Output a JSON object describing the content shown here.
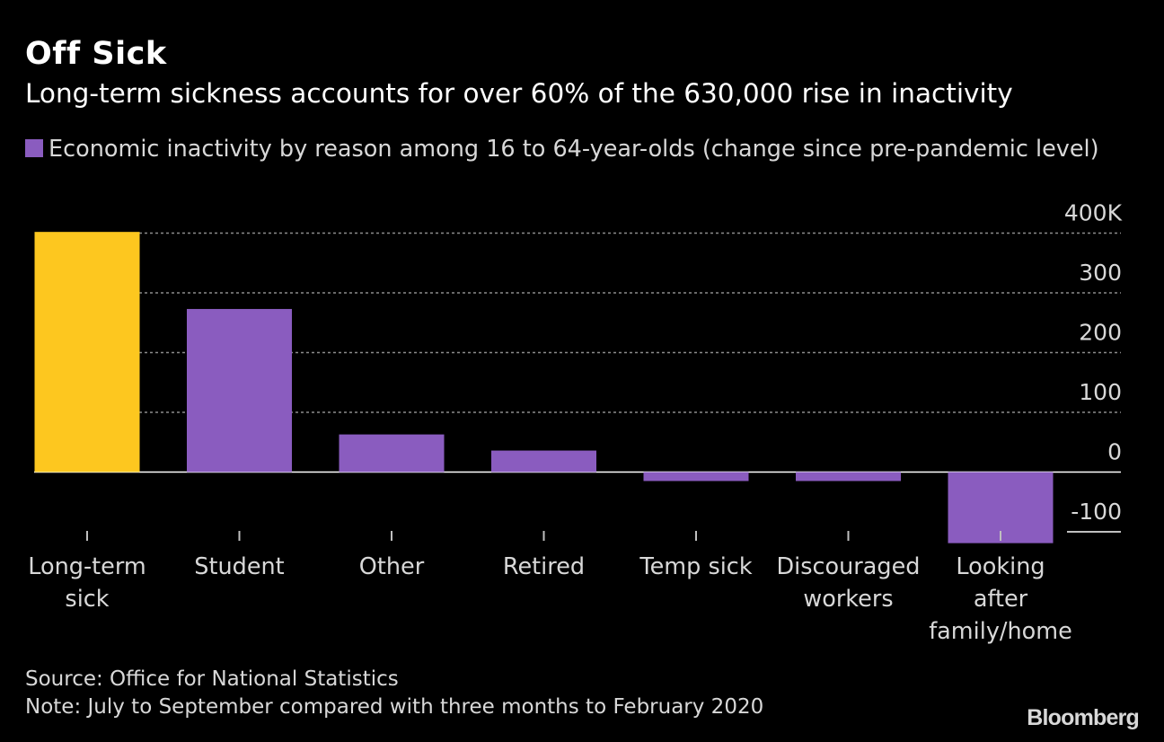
{
  "title": "Off Sick",
  "subtitle": "Long-term sickness accounts for over 60% of the 630,000 rise in inactivity",
  "source": "Source: Office for National Statistics",
  "note": "Note: July to September compared with three months to February 2020",
  "brand": "Bloomberg",
  "colors": {
    "highlight": "#fdc71f",
    "series": "#8a5cbf",
    "background": "#000000",
    "text": "#ffffff",
    "muted": "#d8d8d8"
  },
  "chart_data": {
    "type": "bar",
    "legend": "Economic inactivity by reason among 16 to 64-year-olds (change since pre-pandemic level)",
    "categories": [
      [
        "Long-term",
        "sick"
      ],
      [
        "Student"
      ],
      [
        "Other"
      ],
      [
        "Retired"
      ],
      [
        "Temp sick"
      ],
      [
        "Discouraged",
        "workers"
      ],
      [
        "Looking",
        "after",
        "family/home"
      ]
    ],
    "values": [
      402,
      273,
      63,
      36,
      -15,
      -15,
      -119
    ],
    "highlight_index": 0,
    "ylim": [
      -100,
      400
    ],
    "yticks": [
      400,
      300,
      200,
      100,
      0,
      -100
    ],
    "ytick_labels": [
      "400K",
      "300",
      "200",
      "100",
      "0",
      "-100"
    ],
    "axis_side": "right",
    "grid": "dotted horizontal"
  }
}
